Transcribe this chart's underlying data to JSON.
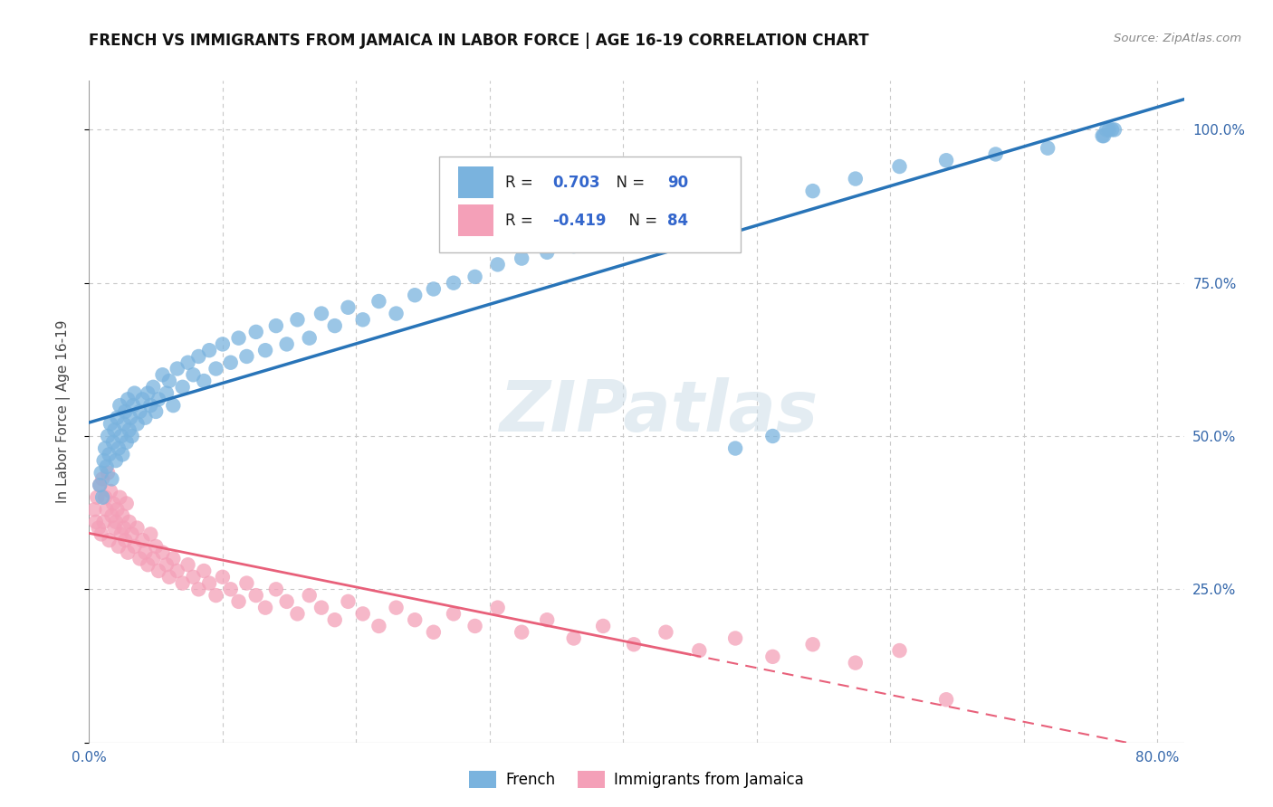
{
  "title": "FRENCH VS IMMIGRANTS FROM JAMAICA IN LABOR FORCE | AGE 16-19 CORRELATION CHART",
  "source": "Source: ZipAtlas.com",
  "ylabel": "In Labor Force | Age 16-19",
  "xlim": [
    0.0,
    0.82
  ],
  "ylim": [
    0.0,
    1.08
  ],
  "x_ticks": [
    0.0,
    0.1,
    0.2,
    0.3,
    0.4,
    0.5,
    0.6,
    0.7,
    0.8
  ],
  "y_ticks": [
    0.0,
    0.25,
    0.5,
    0.75,
    1.0
  ],
  "french_R": 0.703,
  "french_N": 90,
  "jamaica_R": -0.419,
  "jamaica_N": 84,
  "french_color": "#7ab3de",
  "jamaica_color": "#f4a0b8",
  "french_line_color": "#2874b8",
  "jamaica_line_color": "#e8607a",
  "watermark": "ZIPatlas",
  "background_color": "#ffffff",
  "grid_color": "#c8c8c8",
  "french_x": [
    0.008,
    0.009,
    0.01,
    0.011,
    0.012,
    0.013,
    0.014,
    0.015,
    0.016,
    0.017,
    0.018,
    0.019,
    0.02,
    0.021,
    0.022,
    0.023,
    0.024,
    0.025,
    0.026,
    0.027,
    0.028,
    0.029,
    0.03,
    0.031,
    0.032,
    0.033,
    0.034,
    0.036,
    0.038,
    0.04,
    0.042,
    0.044,
    0.046,
    0.048,
    0.05,
    0.052,
    0.055,
    0.058,
    0.06,
    0.063,
    0.066,
    0.07,
    0.074,
    0.078,
    0.082,
    0.086,
    0.09,
    0.095,
    0.1,
    0.106,
    0.112,
    0.118,
    0.125,
    0.132,
    0.14,
    0.148,
    0.156,
    0.165,
    0.174,
    0.184,
    0.194,
    0.205,
    0.217,
    0.23,
    0.244,
    0.258,
    0.273,
    0.289,
    0.306,
    0.324,
    0.343,
    0.363,
    0.385,
    0.408,
    0.432,
    0.457,
    0.484,
    0.512,
    0.542,
    0.574,
    0.607,
    0.642,
    0.679,
    0.718,
    0.759,
    0.76,
    0.762,
    0.764,
    0.766,
    0.768
  ],
  "french_y": [
    0.42,
    0.44,
    0.4,
    0.46,
    0.48,
    0.45,
    0.5,
    0.47,
    0.52,
    0.43,
    0.49,
    0.51,
    0.46,
    0.53,
    0.48,
    0.55,
    0.5,
    0.47,
    0.52,
    0.54,
    0.49,
    0.56,
    0.51,
    0.53,
    0.5,
    0.55,
    0.57,
    0.52,
    0.54,
    0.56,
    0.53,
    0.57,
    0.55,
    0.58,
    0.54,
    0.56,
    0.6,
    0.57,
    0.59,
    0.55,
    0.61,
    0.58,
    0.62,
    0.6,
    0.63,
    0.59,
    0.64,
    0.61,
    0.65,
    0.62,
    0.66,
    0.63,
    0.67,
    0.64,
    0.68,
    0.65,
    0.69,
    0.66,
    0.7,
    0.68,
    0.71,
    0.69,
    0.72,
    0.7,
    0.73,
    0.74,
    0.75,
    0.76,
    0.78,
    0.79,
    0.8,
    0.81,
    0.83,
    0.85,
    0.87,
    0.89,
    0.48,
    0.5,
    0.9,
    0.92,
    0.94,
    0.95,
    0.96,
    0.97,
    0.99,
    0.99,
    1.0,
    1.0,
    1.0,
    1.0
  ],
  "jamaica_x": [
    0.004,
    0.005,
    0.006,
    0.007,
    0.008,
    0.009,
    0.01,
    0.011,
    0.012,
    0.013,
    0.014,
    0.015,
    0.016,
    0.017,
    0.018,
    0.019,
    0.02,
    0.021,
    0.022,
    0.023,
    0.024,
    0.025,
    0.026,
    0.027,
    0.028,
    0.029,
    0.03,
    0.032,
    0.034,
    0.036,
    0.038,
    0.04,
    0.042,
    0.044,
    0.046,
    0.048,
    0.05,
    0.052,
    0.055,
    0.058,
    0.06,
    0.063,
    0.066,
    0.07,
    0.074,
    0.078,
    0.082,
    0.086,
    0.09,
    0.095,
    0.1,
    0.106,
    0.112,
    0.118,
    0.125,
    0.132,
    0.14,
    0.148,
    0.156,
    0.165,
    0.174,
    0.184,
    0.194,
    0.205,
    0.217,
    0.23,
    0.244,
    0.258,
    0.273,
    0.289,
    0.306,
    0.324,
    0.343,
    0.363,
    0.385,
    0.408,
    0.432,
    0.457,
    0.484,
    0.512,
    0.542,
    0.574,
    0.607,
    0.642
  ],
  "jamaica_y": [
    0.38,
    0.36,
    0.4,
    0.35,
    0.42,
    0.34,
    0.43,
    0.36,
    0.4,
    0.38,
    0.44,
    0.33,
    0.41,
    0.37,
    0.39,
    0.35,
    0.36,
    0.38,
    0.32,
    0.4,
    0.34,
    0.37,
    0.35,
    0.33,
    0.39,
    0.31,
    0.36,
    0.34,
    0.32,
    0.35,
    0.3,
    0.33,
    0.31,
    0.29,
    0.34,
    0.3,
    0.32,
    0.28,
    0.31,
    0.29,
    0.27,
    0.3,
    0.28,
    0.26,
    0.29,
    0.27,
    0.25,
    0.28,
    0.26,
    0.24,
    0.27,
    0.25,
    0.23,
    0.26,
    0.24,
    0.22,
    0.25,
    0.23,
    0.21,
    0.24,
    0.22,
    0.2,
    0.23,
    0.21,
    0.19,
    0.22,
    0.2,
    0.18,
    0.21,
    0.19,
    0.22,
    0.18,
    0.2,
    0.17,
    0.19,
    0.16,
    0.18,
    0.15,
    0.17,
    0.14,
    0.16,
    0.13,
    0.15,
    0.07
  ]
}
